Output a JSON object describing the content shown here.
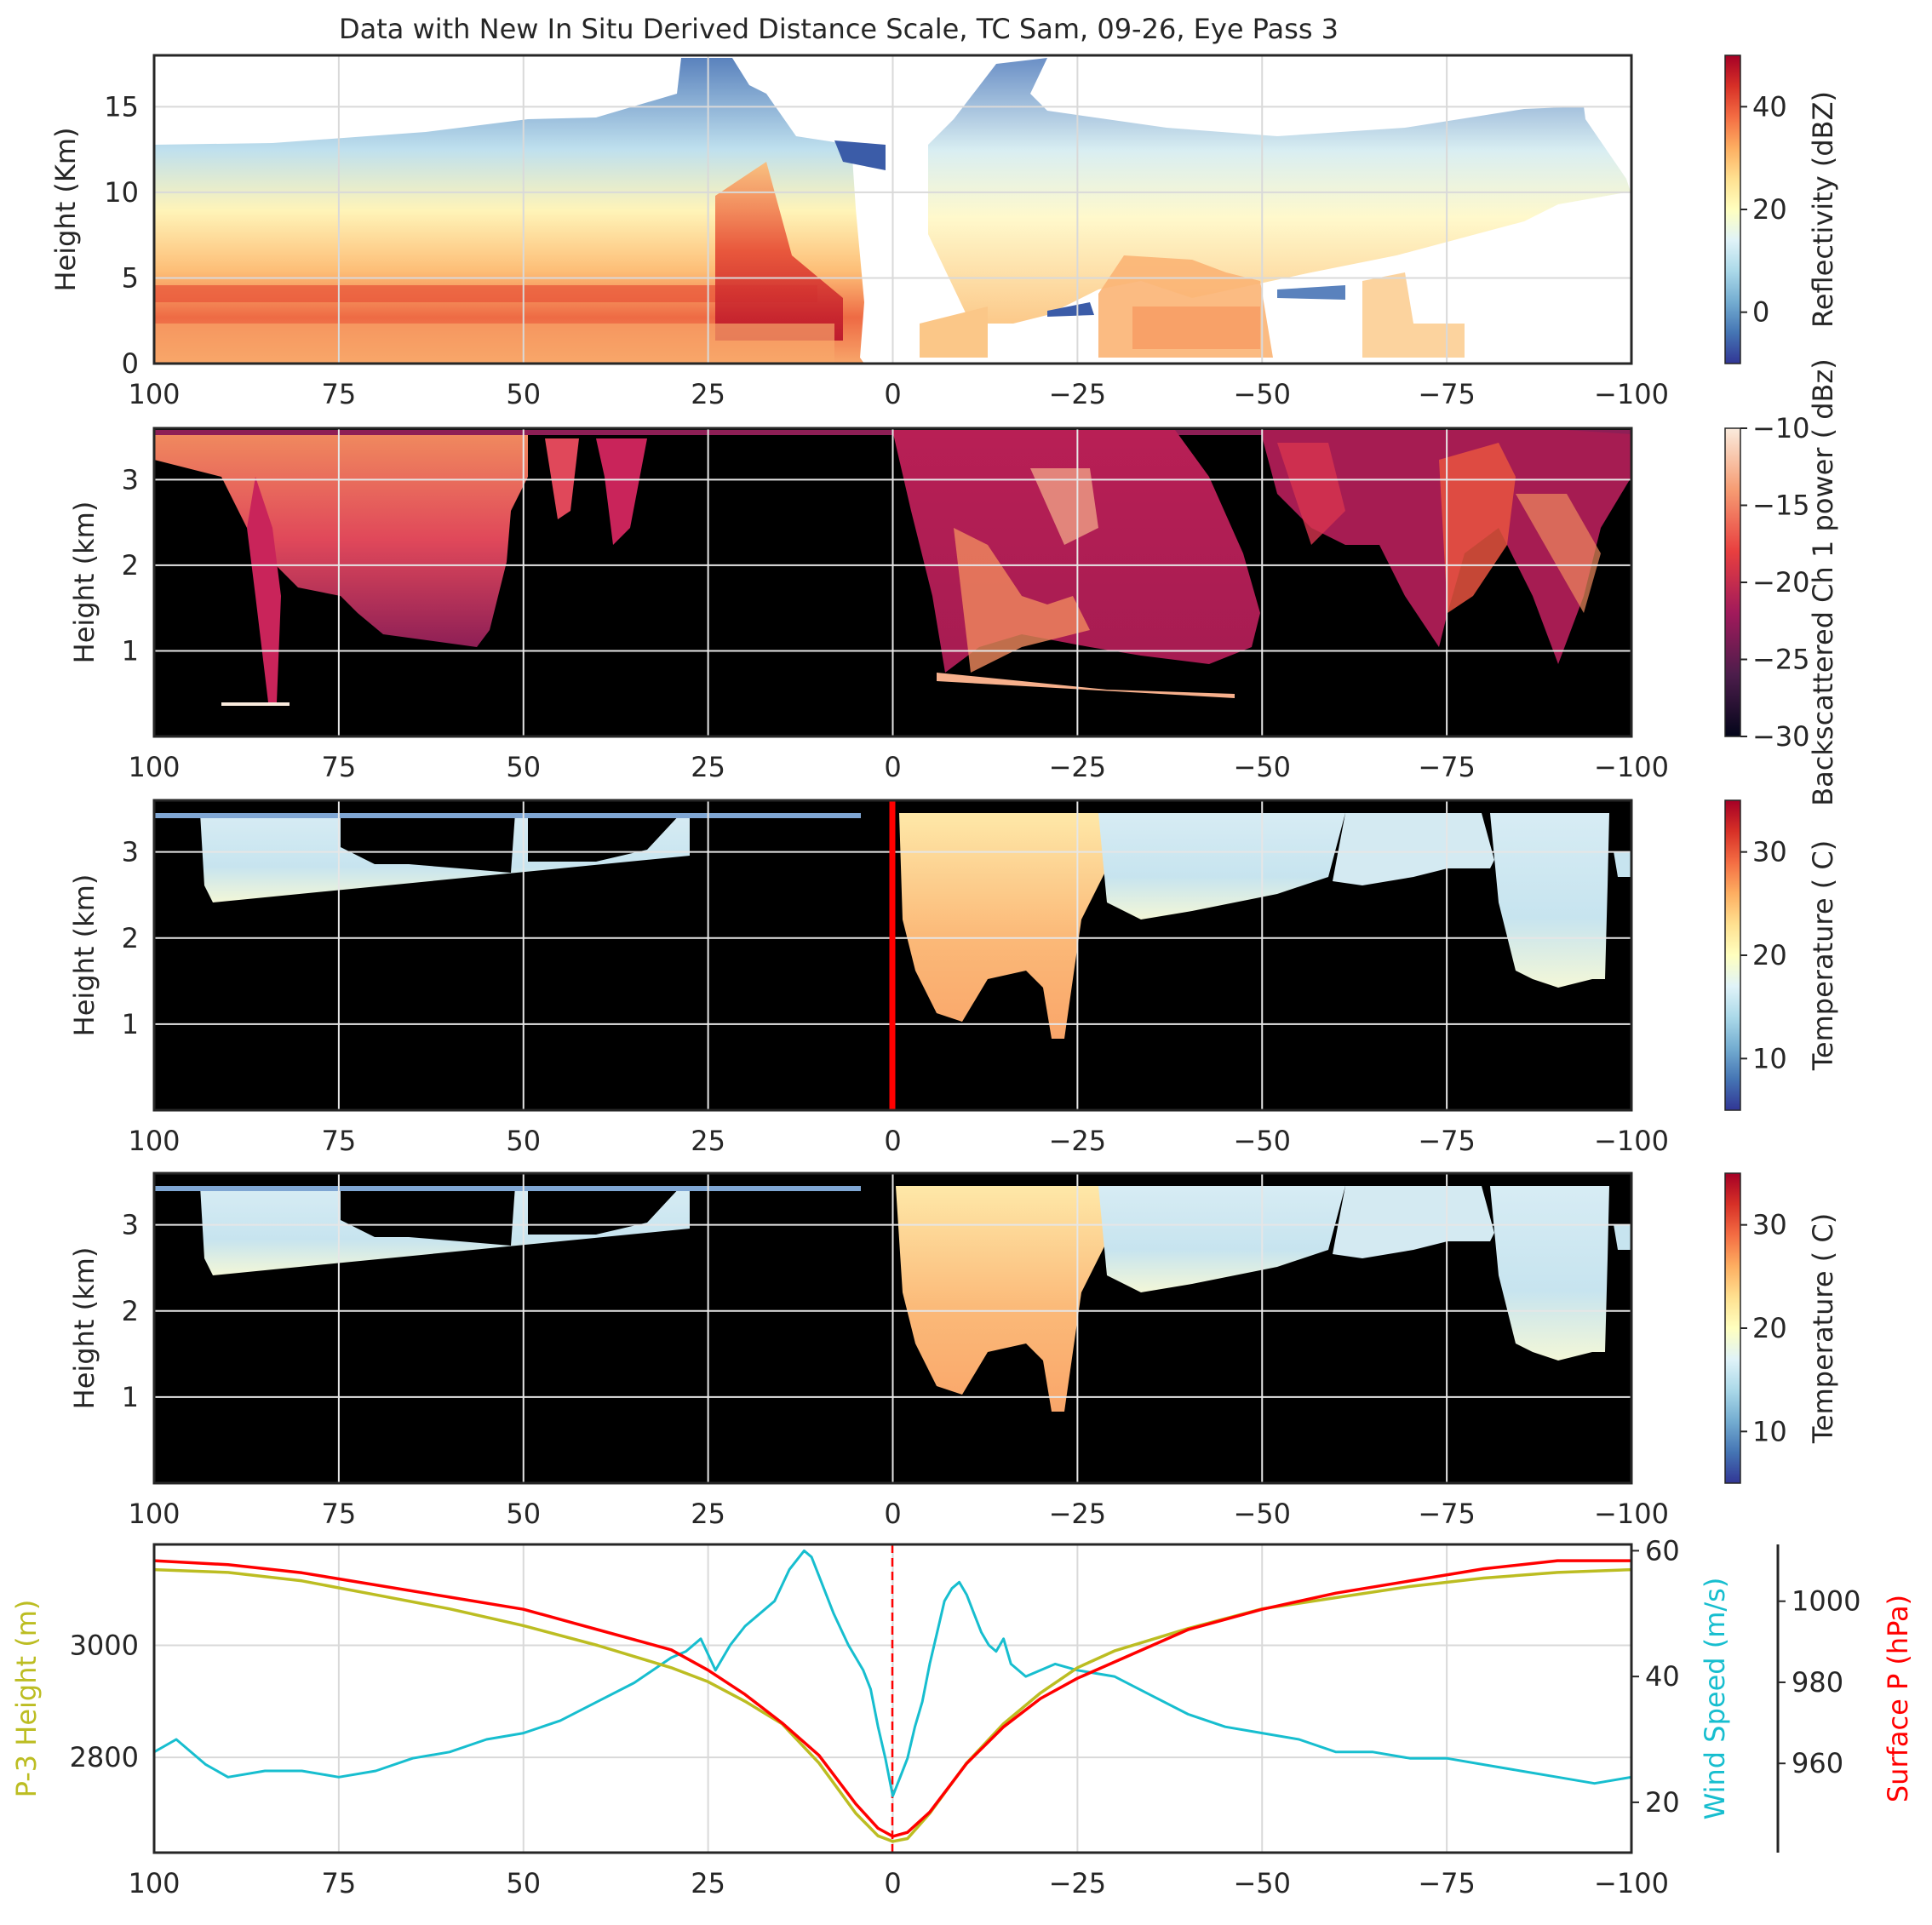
{
  "figure": {
    "title": "Data with New In Situ Derived Distance Scale, TC Sam, 09-26, Eye Pass 3"
  },
  "colors": {
    "background": "#ffffff",
    "panel_fill": "#000000",
    "grid_light": "#d9d9d9",
    "grid_dark": "#e6e6e6",
    "p3_height": "#bcbd22",
    "wind_speed": "#17becf",
    "surface_p": "#ff0000",
    "eye_marker": "#ff0000"
  },
  "x_axis": {
    "ticks": [
      100,
      75,
      50,
      25,
      0,
      -25,
      -50,
      -75,
      -100
    ],
    "tick_labels": [
      "100",
      "75",
      "50",
      "25",
      "0",
      "−25",
      "−50",
      "−75",
      "−100"
    ],
    "range": [
      100,
      -100
    ]
  },
  "chart_data": [
    {
      "type": "heatmap",
      "name": "reflectivity",
      "ylabel": "Height (Km)",
      "ylim": [
        0,
        18
      ],
      "yticks": [
        0,
        5,
        10,
        15
      ],
      "colorbar": {
        "label": "Reflectivity (dBZ)",
        "range": [
          -10,
          50
        ],
        "ticks": [
          0,
          20,
          40
        ],
        "tick_labels": [
          "0",
          "20",
          "40"
        ],
        "colormap": "RdYlBu_r"
      },
      "grid": true
    },
    {
      "type": "heatmap",
      "name": "lidar_backscatter",
      "ylabel": "Height (km)",
      "ylim": [
        0,
        3.6
      ],
      "yticks": [
        1,
        2,
        3
      ],
      "colorbar": {
        "label": "Backscattered Ch 1 power ( dBz)",
        "range": [
          -30,
          -10
        ],
        "ticks": [
          -10,
          -15,
          -20,
          -25,
          -30
        ],
        "tick_labels": [
          "−10",
          "−15",
          "−20",
          "−25",
          "−30"
        ],
        "colormap": "rocket"
      },
      "grid": true
    },
    {
      "type": "heatmap",
      "name": "temperature_1",
      "ylabel": "Height (km)",
      "ylim": [
        0,
        3.6
      ],
      "yticks": [
        1,
        2,
        3
      ],
      "eye_marker_x": 0,
      "colorbar": {
        "label": "Temperature ( C)",
        "range": [
          5,
          35
        ],
        "ticks": [
          10,
          20,
          30
        ],
        "tick_labels": [
          "10",
          "20",
          "30"
        ],
        "colormap": "RdYlBu_r"
      },
      "grid": true
    },
    {
      "type": "heatmap",
      "name": "temperature_2",
      "ylabel": "Height (km)",
      "ylim": [
        0,
        3.6
      ],
      "yticks": [
        1,
        2,
        3
      ],
      "colorbar": {
        "label": "Temperature ( C)",
        "range": [
          5,
          35
        ],
        "ticks": [
          10,
          20,
          30
        ],
        "tick_labels": [
          "10",
          "20",
          "30"
        ],
        "colormap": "RdYlBu_r"
      },
      "grid": true
    },
    {
      "type": "line",
      "name": "flight_level",
      "eye_marker_x": 0,
      "grid": true,
      "axes": [
        {
          "label": "P-3 Height (m)",
          "ylim": [
            2630,
            3180
          ],
          "ticks": [
            2800,
            3000
          ],
          "tick_labels": [
            "2800",
            "3000"
          ]
        },
        {
          "label": "Wind Speed (m/s)",
          "ylim": [
            12,
            61
          ],
          "ticks": [
            20,
            40,
            60
          ],
          "tick_labels": [
            "20",
            "40",
            "60"
          ]
        },
        {
          "label": "Surface P (hPa)",
          "ylim": [
            938,
            1014
          ],
          "ticks": [
            960,
            980,
            1000
          ],
          "tick_labels": [
            "960",
            "980",
            "1000"
          ]
        }
      ],
      "series": [
        {
          "axis": 0,
          "x": [
            100,
            90,
            80,
            70,
            60,
            50,
            40,
            30,
            25,
            20,
            15,
            10,
            5,
            2,
            0,
            -2,
            -5,
            -10,
            -15,
            -20,
            -25,
            -30,
            -40,
            -50,
            -60,
            -70,
            -80,
            -90,
            -100
          ],
          "y": [
            3135,
            3130,
            3115,
            3090,
            3065,
            3035,
            3000,
            2960,
            2935,
            2900,
            2860,
            2790,
            2700,
            2660,
            2650,
            2655,
            2700,
            2790,
            2860,
            2915,
            2960,
            2990,
            3030,
            3065,
            3085,
            3105,
            3120,
            3130,
            3135
          ]
        },
        {
          "axis": 1,
          "x": [
            100,
            97,
            93,
            90,
            85,
            80,
            75,
            70,
            65,
            60,
            55,
            50,
            45,
            40,
            35,
            30,
            28,
            26,
            24,
            22,
            20,
            18,
            16,
            14,
            12,
            11,
            10,
            8,
            6,
            4,
            3,
            2,
            1,
            0,
            -1,
            -2,
            -3,
            -4,
            -5,
            -6,
            -7,
            -8,
            -9,
            -10,
            -11,
            -12,
            -13,
            -14,
            -15,
            -16,
            -18,
            -20,
            -22,
            -25,
            -30,
            -35,
            -40,
            -45,
            -50,
            -55,
            -60,
            -65,
            -70,
            -75,
            -80,
            -85,
            -90,
            -95,
            -100
          ],
          "y": [
            28,
            30,
            26,
            24,
            25,
            25,
            24,
            25,
            27,
            28,
            30,
            31,
            33,
            36,
            39,
            43,
            44,
            46,
            41,
            45,
            48,
            50,
            52,
            57,
            60,
            59,
            56,
            50,
            45,
            41,
            38,
            32,
            27,
            21,
            24,
            27,
            32,
            36,
            42,
            47,
            52,
            54,
            55,
            53,
            50,
            47,
            45,
            44,
            46,
            42,
            40,
            41,
            42,
            41,
            40,
            37,
            34,
            32,
            31,
            30,
            28,
            28,
            27,
            27,
            26,
            25,
            24,
            23,
            24
          ]
        },
        {
          "axis": 2,
          "x": [
            100,
            90,
            80,
            70,
            60,
            50,
            40,
            30,
            25,
            20,
            15,
            10,
            5,
            2,
            0,
            -2,
            -5,
            -10,
            -15,
            -20,
            -25,
            -30,
            -40,
            -50,
            -60,
            -70,
            -80,
            -90,
            -100
          ],
          "y": [
            1010,
            1009,
            1007,
            1004,
            1001,
            998,
            993,
            988,
            983,
            977,
            970,
            962,
            950,
            944,
            942,
            943,
            948,
            960,
            969,
            976,
            981,
            985,
            993,
            998,
            1002,
            1005,
            1008,
            1010,
            1010
          ]
        }
      ]
    }
  ]
}
